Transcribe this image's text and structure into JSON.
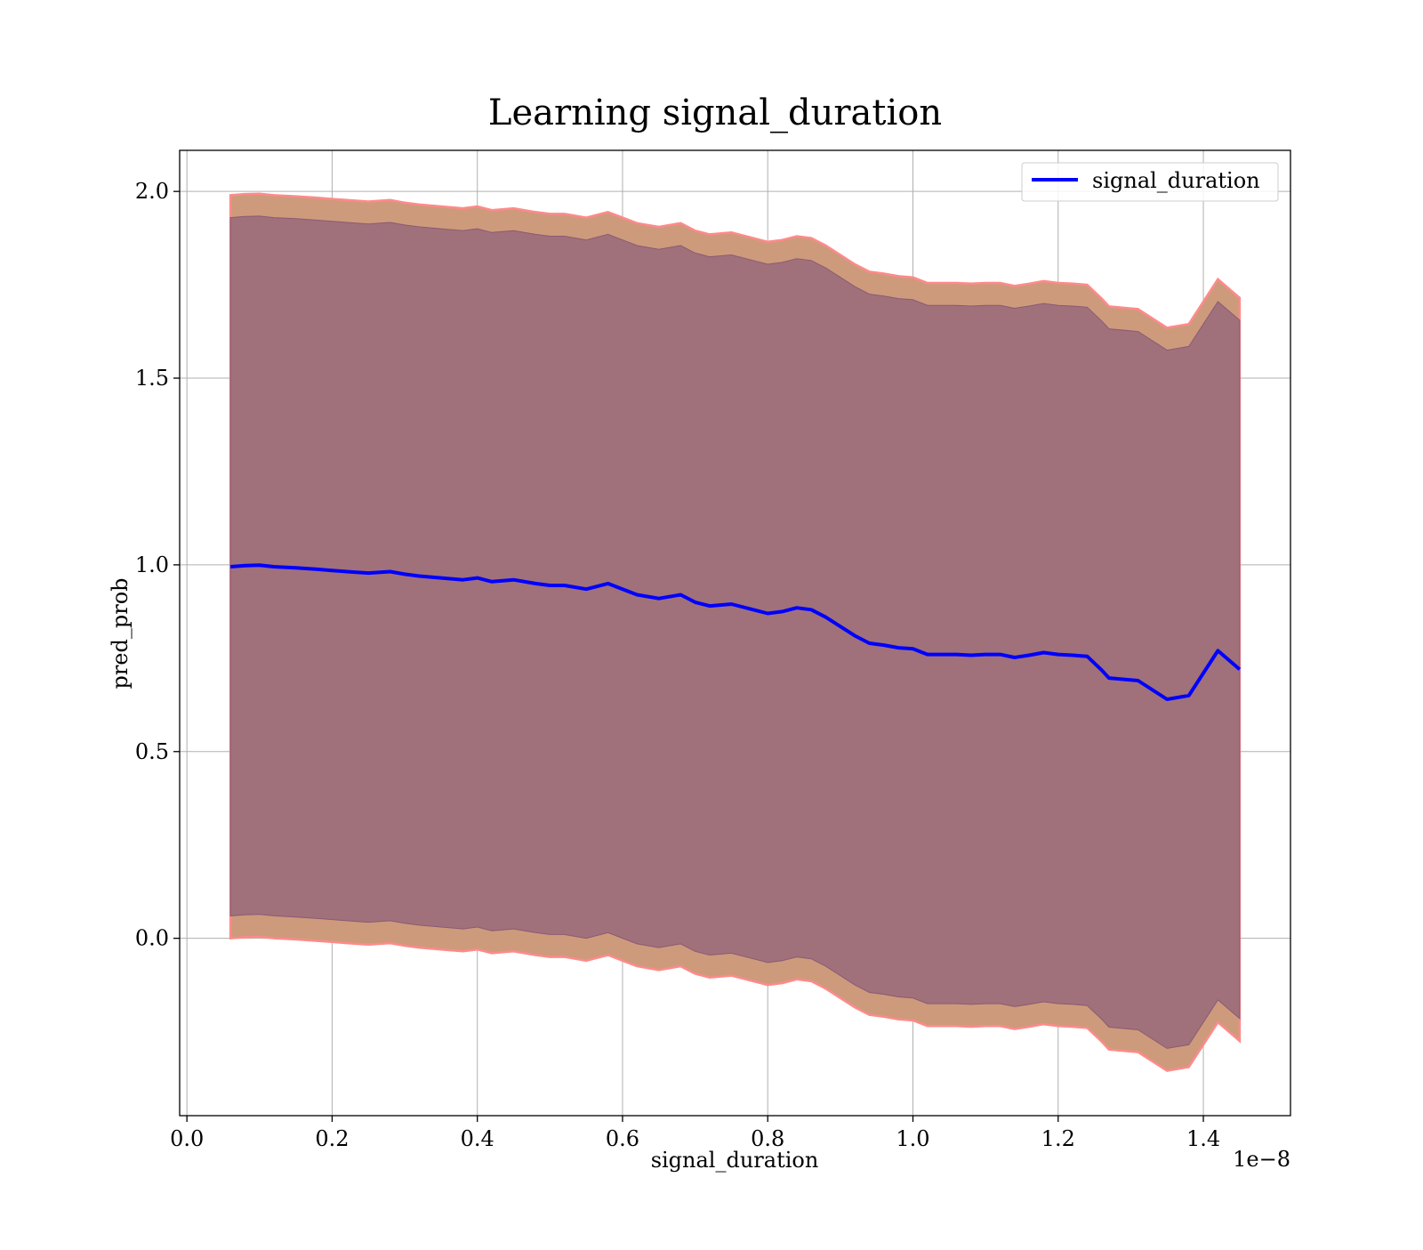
{
  "chart_data": {
    "type": "line",
    "title": "Learning signal_duration",
    "xlabel": "signal_duration",
    "ylabel": "pred_prob",
    "x_offset_label": "1e−8",
    "xlim": [
      -0.01,
      1.52
    ],
    "ylim": [
      -0.475,
      2.11
    ],
    "x_ticks": [
      0.0,
      0.2,
      0.4,
      0.6,
      0.8,
      1.0,
      1.2,
      1.4
    ],
    "x_tick_labels": [
      "0.0",
      "0.2",
      "0.4",
      "0.6",
      "0.8",
      "1.0",
      "1.2",
      "1.4"
    ],
    "y_ticks": [
      0.0,
      0.5,
      1.0,
      1.5,
      2.0
    ],
    "y_tick_labels": [
      "0.0",
      "0.5",
      "1.0",
      "1.5",
      "2.0"
    ],
    "grid": true,
    "legend": {
      "position": "top-right",
      "entries": [
        "signal_duration"
      ]
    },
    "colors": {
      "line": "#0000ff",
      "outer_band": "#cd9a7c",
      "outer_band_edge": "#ff8a8a",
      "inner_band": "#a0717b",
      "inner_band_edge": "#8a5a74",
      "grid": "#b0b0b0"
    },
    "series": [
      {
        "name": "signal_duration",
        "x": [
          0.06,
          0.08,
          0.1,
          0.12,
          0.15,
          0.18,
          0.2,
          0.22,
          0.25,
          0.28,
          0.3,
          0.32,
          0.35,
          0.38,
          0.4,
          0.42,
          0.45,
          0.48,
          0.5,
          0.52,
          0.55,
          0.58,
          0.6,
          0.62,
          0.65,
          0.68,
          0.7,
          0.72,
          0.75,
          0.78,
          0.8,
          0.82,
          0.84,
          0.86,
          0.88,
          0.9,
          0.92,
          0.94,
          0.96,
          0.98,
          1.0,
          1.02,
          1.04,
          1.06,
          1.08,
          1.1,
          1.12,
          1.14,
          1.16,
          1.18,
          1.2,
          1.22,
          1.24,
          1.26,
          1.27,
          1.31,
          1.33,
          1.35,
          1.38,
          1.42,
          1.45
        ],
        "y": [
          0.995,
          0.998,
          0.999,
          0.995,
          0.992,
          0.988,
          0.985,
          0.982,
          0.978,
          0.982,
          0.975,
          0.97,
          0.965,
          0.96,
          0.965,
          0.955,
          0.96,
          0.95,
          0.945,
          0.945,
          0.935,
          0.95,
          0.935,
          0.92,
          0.91,
          0.92,
          0.9,
          0.89,
          0.895,
          0.88,
          0.87,
          0.875,
          0.885,
          0.88,
          0.86,
          0.835,
          0.81,
          0.79,
          0.785,
          0.778,
          0.775,
          0.76,
          0.76,
          0.76,
          0.758,
          0.76,
          0.76,
          0.752,
          0.758,
          0.765,
          0.76,
          0.758,
          0.755,
          0.718,
          0.697,
          0.69,
          0.665,
          0.64,
          0.65,
          0.77,
          0.72
        ],
        "band_outer_halfwidth": 0.995,
        "band_inner_halfwidth": 0.935
      }
    ]
  }
}
